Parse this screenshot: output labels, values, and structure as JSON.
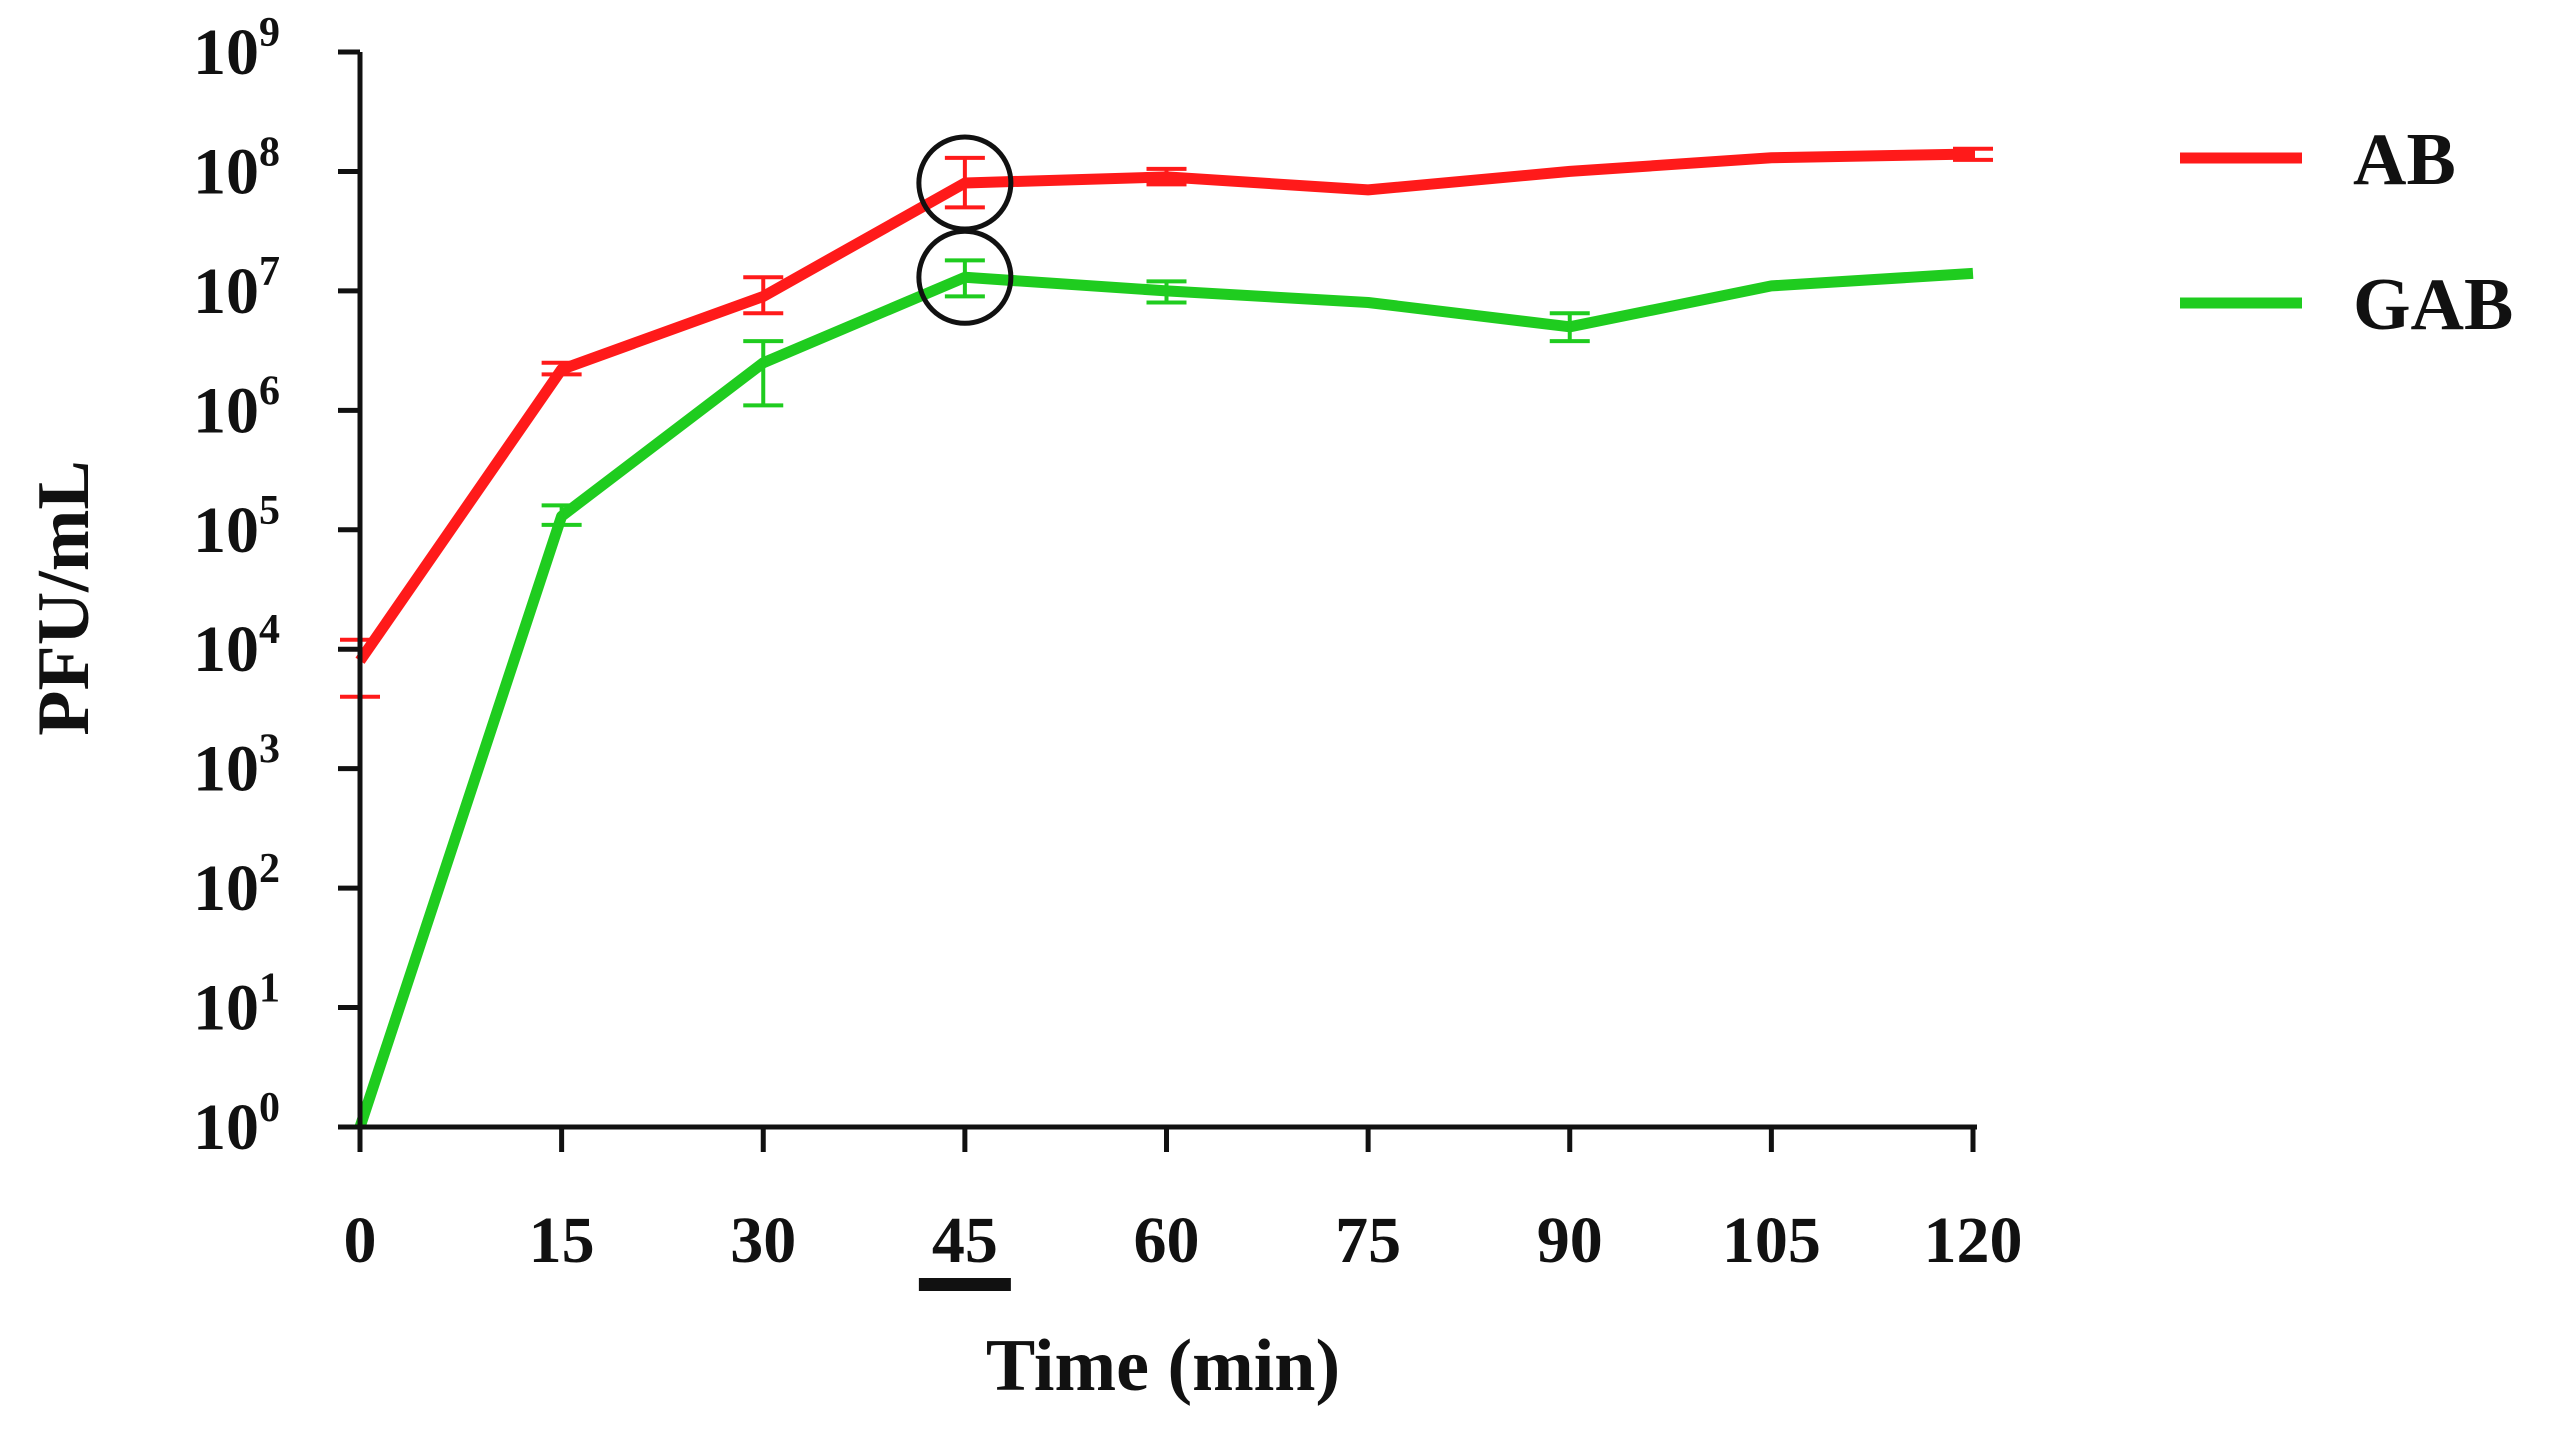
{
  "chart_data": {
    "type": "line",
    "title": "",
    "xlabel": "Time (min)",
    "ylabel": "PFU/mL",
    "yscale": "log10",
    "ylim": [
      1,
      1000000000
    ],
    "xlim": [
      0,
      120
    ],
    "x_ticks": [
      "0",
      "15",
      "30",
      "45",
      "60",
      "75",
      "90",
      "105",
      "120"
    ],
    "y_ticks": [
      {
        "base": "10",
        "exp": "0"
      },
      {
        "base": "10",
        "exp": "1"
      },
      {
        "base": "10",
        "exp": "2"
      },
      {
        "base": "10",
        "exp": "3"
      },
      {
        "base": "10",
        "exp": "4"
      },
      {
        "base": "10",
        "exp": "5"
      },
      {
        "base": "10",
        "exp": "6"
      },
      {
        "base": "10",
        "exp": "7"
      },
      {
        "base": "10",
        "exp": "8"
      },
      {
        "base": "10",
        "exp": "9"
      }
    ],
    "x": [
      0,
      15,
      30,
      45,
      60,
      75,
      90,
      105,
      120
    ],
    "series": [
      {
        "name": "AB",
        "color": "#ff1a1a",
        "values": [
          8000,
          2200000,
          9000000,
          80000000,
          90000000,
          70000000,
          100000000,
          130000000,
          140000000
        ],
        "err_low": [
          4000,
          2000000,
          6500000,
          50000000,
          78000000,
          70000000,
          100000000,
          130000000,
          125000000
        ],
        "err_high": [
          12000,
          2500000,
          13000000,
          130000000,
          105000000,
          70000000,
          100000000,
          130000000,
          155000000
        ]
      },
      {
        "name": "GAB",
        "color": "#1fcc1f",
        "values": [
          1,
          130000,
          2500000,
          13000000,
          10000000,
          8000000,
          5000000,
          11000000,
          14000000
        ],
        "err_low": [
          1,
          110000,
          1100000,
          9000000,
          8000000,
          8000000,
          3800000,
          11000000,
          14000000
        ],
        "err_high": [
          1,
          160000,
          3800000,
          18000000,
          12000000,
          8000000,
          6500000,
          11000000,
          14000000
        ]
      }
    ],
    "annotations": [
      {
        "type": "circle",
        "series": "AB",
        "x": 45,
        "y": 80000000
      },
      {
        "type": "circle",
        "series": "GAB",
        "x": 45,
        "y": 13000000
      },
      {
        "type": "underline",
        "axis": "x",
        "x": 45
      }
    ],
    "legend": {
      "placement": "right",
      "entries": [
        "AB",
        "GAB"
      ]
    },
    "grid": false
  }
}
